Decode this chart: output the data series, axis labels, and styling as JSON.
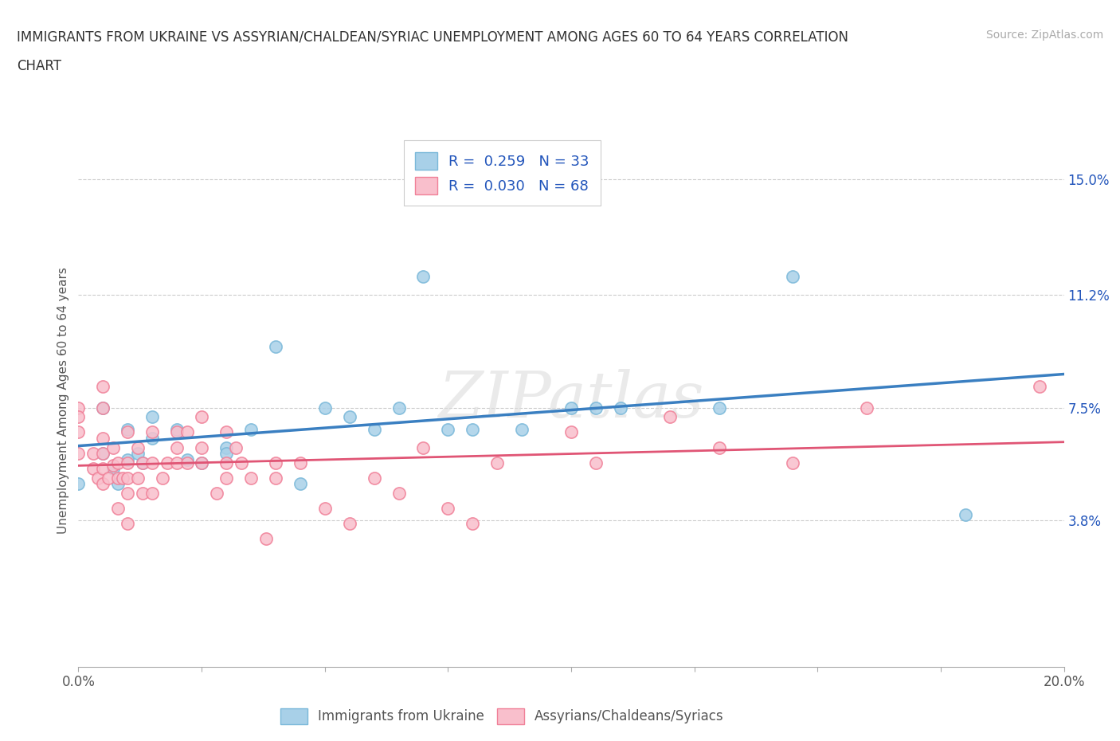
{
  "title_line1": "IMMIGRANTS FROM UKRAINE VS ASSYRIAN/CHALDEAN/SYRIAC UNEMPLOYMENT AMONG AGES 60 TO 64 YEARS CORRELATION",
  "title_line2": "CHART",
  "source": "Source: ZipAtlas.com",
  "ylabel": "Unemployment Among Ages 60 to 64 years",
  "xlim": [
    0.0,
    0.2
  ],
  "ylim": [
    -0.01,
    0.165
  ],
  "yticks": [
    0.038,
    0.075,
    0.112,
    0.15
  ],
  "ytick_labels": [
    "3.8%",
    "7.5%",
    "11.2%",
    "15.0%"
  ],
  "xticks": [
    0.0,
    0.025,
    0.05,
    0.075,
    0.1,
    0.125,
    0.15,
    0.175,
    0.2
  ],
  "xtick_labels": [
    "0.0%",
    "",
    "",
    "",
    "",
    "",
    "",
    "",
    "20.0%"
  ],
  "ukraine_color": "#A8D0E8",
  "ukraine_edge_color": "#7AB8D9",
  "assyrian_color": "#F9BFCC",
  "assyrian_edge_color": "#F08098",
  "ukraine_line_color": "#3A7FC1",
  "assyrian_line_color": "#E05575",
  "R_ukraine": 0.259,
  "N_ukraine": 33,
  "R_assyrian": 0.03,
  "N_assyrian": 68,
  "ukraine_points": [
    [
      0.0,
      0.05
    ],
    [
      0.005,
      0.075
    ],
    [
      0.005,
      0.06
    ],
    [
      0.007,
      0.055
    ],
    [
      0.008,
      0.05
    ],
    [
      0.01,
      0.068
    ],
    [
      0.01,
      0.058
    ],
    [
      0.012,
      0.06
    ],
    [
      0.013,
      0.057
    ],
    [
      0.015,
      0.072
    ],
    [
      0.015,
      0.065
    ],
    [
      0.02,
      0.068
    ],
    [
      0.022,
      0.058
    ],
    [
      0.025,
      0.057
    ],
    [
      0.03,
      0.062
    ],
    [
      0.03,
      0.06
    ],
    [
      0.035,
      0.068
    ],
    [
      0.04,
      0.095
    ],
    [
      0.045,
      0.05
    ],
    [
      0.05,
      0.075
    ],
    [
      0.055,
      0.072
    ],
    [
      0.06,
      0.068
    ],
    [
      0.065,
      0.075
    ],
    [
      0.07,
      0.118
    ],
    [
      0.075,
      0.068
    ],
    [
      0.08,
      0.068
    ],
    [
      0.09,
      0.068
    ],
    [
      0.1,
      0.075
    ],
    [
      0.105,
      0.075
    ],
    [
      0.11,
      0.075
    ],
    [
      0.13,
      0.075
    ],
    [
      0.145,
      0.118
    ],
    [
      0.18,
      0.04
    ]
  ],
  "assyrian_points": [
    [
      0.0,
      0.075
    ],
    [
      0.0,
      0.072
    ],
    [
      0.0,
      0.067
    ],
    [
      0.0,
      0.06
    ],
    [
      0.003,
      0.06
    ],
    [
      0.003,
      0.055
    ],
    [
      0.004,
      0.052
    ],
    [
      0.005,
      0.082
    ],
    [
      0.005,
      0.075
    ],
    [
      0.005,
      0.065
    ],
    [
      0.005,
      0.06
    ],
    [
      0.005,
      0.055
    ],
    [
      0.005,
      0.05
    ],
    [
      0.006,
      0.052
    ],
    [
      0.007,
      0.062
    ],
    [
      0.007,
      0.056
    ],
    [
      0.008,
      0.057
    ],
    [
      0.008,
      0.052
    ],
    [
      0.008,
      0.042
    ],
    [
      0.009,
      0.052
    ],
    [
      0.01,
      0.067
    ],
    [
      0.01,
      0.057
    ],
    [
      0.01,
      0.052
    ],
    [
      0.01,
      0.047
    ],
    [
      0.01,
      0.037
    ],
    [
      0.012,
      0.062
    ],
    [
      0.012,
      0.052
    ],
    [
      0.013,
      0.057
    ],
    [
      0.013,
      0.047
    ],
    [
      0.015,
      0.067
    ],
    [
      0.015,
      0.057
    ],
    [
      0.015,
      0.047
    ],
    [
      0.017,
      0.052
    ],
    [
      0.018,
      0.057
    ],
    [
      0.02,
      0.067
    ],
    [
      0.02,
      0.062
    ],
    [
      0.02,
      0.057
    ],
    [
      0.022,
      0.067
    ],
    [
      0.022,
      0.057
    ],
    [
      0.025,
      0.072
    ],
    [
      0.025,
      0.062
    ],
    [
      0.025,
      0.057
    ],
    [
      0.028,
      0.047
    ],
    [
      0.03,
      0.067
    ],
    [
      0.03,
      0.057
    ],
    [
      0.03,
      0.052
    ],
    [
      0.032,
      0.062
    ],
    [
      0.033,
      0.057
    ],
    [
      0.035,
      0.052
    ],
    [
      0.038,
      0.032
    ],
    [
      0.04,
      0.057
    ],
    [
      0.04,
      0.052
    ],
    [
      0.045,
      0.057
    ],
    [
      0.05,
      0.042
    ],
    [
      0.055,
      0.037
    ],
    [
      0.06,
      0.052
    ],
    [
      0.065,
      0.047
    ],
    [
      0.07,
      0.062
    ],
    [
      0.075,
      0.042
    ],
    [
      0.08,
      0.037
    ],
    [
      0.085,
      0.057
    ],
    [
      0.1,
      0.067
    ],
    [
      0.105,
      0.057
    ],
    [
      0.12,
      0.072
    ],
    [
      0.13,
      0.062
    ],
    [
      0.145,
      0.057
    ],
    [
      0.16,
      0.075
    ],
    [
      0.195,
      0.082
    ]
  ],
  "watermark_text": "ZIPatlas",
  "background_color": "#FFFFFF",
  "grid_color": "#CCCCCC"
}
